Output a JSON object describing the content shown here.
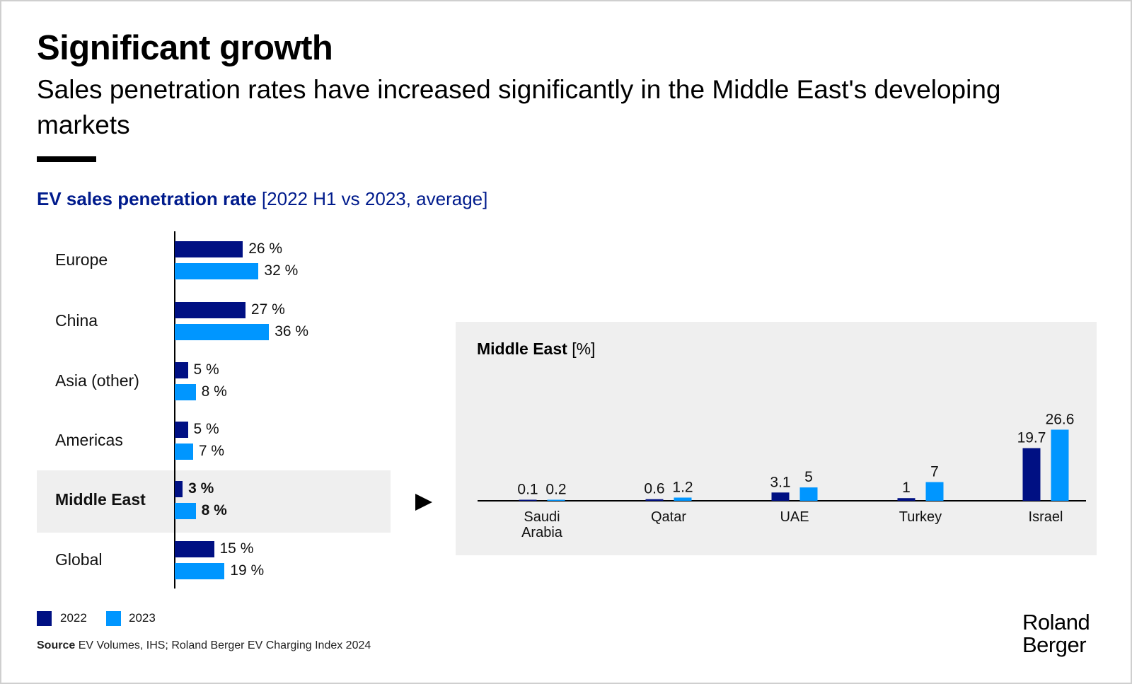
{
  "header": {
    "title": "Significant growth",
    "subtitle": "Sales penetration rates have increased significantly in the Middle East's developing markets"
  },
  "colors": {
    "y2022": "#001083",
    "y2023": "#0096ff",
    "panel": "#efefef",
    "heading": "#001b8c"
  },
  "chart_data": [
    {
      "type": "bar",
      "orientation": "horizontal",
      "title": "EV sales penetration rate",
      "title_qualifier": "[2022 H1 vs 2023, average]",
      "categories": [
        "Europe",
        "China",
        "Asia (other)",
        "Americas",
        "Middle East",
        "Global"
      ],
      "highlighted_category": "Middle East",
      "series": [
        {
          "name": "2022",
          "values": [
            26,
            27,
            5,
            5,
            3,
            15
          ]
        },
        {
          "name": "2023",
          "values": [
            32,
            36,
            8,
            7,
            8,
            19
          ]
        }
      ],
      "value_labels": {
        "2022": [
          "26 %",
          "27 %",
          "5 %",
          "5 %",
          "3 %",
          "15 %"
        ],
        "2023": [
          "32 %",
          "36 %",
          "8 %",
          "7 %",
          "8 %",
          "19 %"
        ]
      },
      "unit": "%",
      "legend": [
        "2022",
        "2023"
      ],
      "legend_position": "bottom-left"
    },
    {
      "type": "bar",
      "orientation": "vertical",
      "title": "Middle East",
      "title_unit": "[%]",
      "categories": [
        "Saudi Arabia",
        "Qatar",
        "UAE",
        "Turkey",
        "Israel"
      ],
      "category_lines": [
        [
          "Saudi",
          "Arabia"
        ],
        [
          "Qatar"
        ],
        [
          "UAE"
        ],
        [
          "Turkey"
        ],
        [
          "Israel"
        ]
      ],
      "series": [
        {
          "name": "2022",
          "values": [
            0.1,
            0.6,
            3.1,
            1,
            19.7
          ],
          "labels": [
            "0.1",
            "0.6",
            "3.1",
            "1",
            "19.7"
          ]
        },
        {
          "name": "2023",
          "values": [
            0.2,
            1.2,
            5,
            7,
            26.6
          ],
          "labels": [
            "0.2",
            "1.2",
            "5",
            "7",
            "26.6"
          ]
        }
      ]
    }
  ],
  "legend": {
    "y2022": "2022",
    "y2023": "2023"
  },
  "footer": {
    "source_label": "Source",
    "source_text": "EV Volumes, IHS; Roland Berger EV Charging Index 2024",
    "logo_line1": "Roland",
    "logo_line2": "Berger"
  }
}
